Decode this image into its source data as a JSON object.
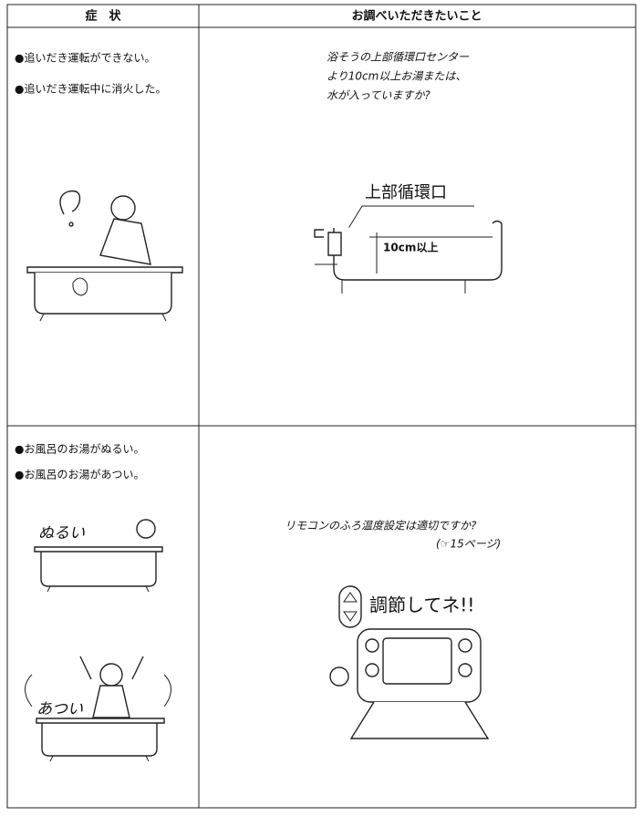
{
  "table": {
    "header": [
      "症　状",
      "お調べいただきたいこと"
    ],
    "rows": [
      {
        "symptoms": [
          "●追いだき運転ができない。",
          "●追いだき運転中に消火した。"
        ],
        "check": [
          "浴そうの上部循環口センター",
          "より10cm以上お湯または、",
          "水が入っていますか?"
        ],
        "figure_labels": [
          "上部循環口",
          "10cm以上"
        ]
      },
      {
        "symptoms": [
          "●お風呂のお湯がぬるい。",
          "●お風呂のお湯があつい。"
        ],
        "check": [
          "リモコンのふろ温度設定は適切ですか?",
          "(☞15ページ)"
        ],
        "figure_labels": [
          "ぬるい",
          "あつい",
          "調節してネ!!"
        ]
      }
    ]
  }
}
